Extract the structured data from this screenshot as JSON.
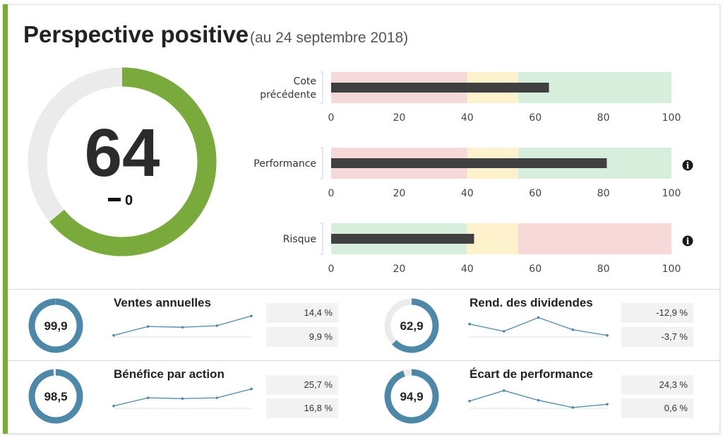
{
  "header": {
    "title": "Perspective positive",
    "subtitle": "(au 24 septembre 2018)"
  },
  "score": {
    "value": "64",
    "change": "0",
    "fraction": 0.64,
    "color": "#7aa93c",
    "track_color": "#ebebeb"
  },
  "colors": {
    "red_zone": "#f6d8d8",
    "yellow_zone": "#fdf2cc",
    "green_zone": "#d6eedb",
    "bar": "#404040",
    "gauge": "#4e88a8",
    "gauge_track": "#ebebeb",
    "spark": "#4e88a8"
  },
  "chart_data": [
    {
      "type": "bar",
      "orientation": "horizontal",
      "title": "",
      "xlim": [
        0,
        100
      ],
      "xticks": [
        "0",
        "20",
        "40",
        "60",
        "80",
        "100"
      ],
      "zones": [
        [
          0,
          40,
          "red"
        ],
        [
          40,
          55,
          "yellow"
        ],
        [
          55,
          100,
          "green"
        ]
      ],
      "categories": [
        "Cote précédente"
      ],
      "values": [
        64
      ]
    },
    {
      "type": "bar",
      "orientation": "horizontal",
      "title": "",
      "xlim": [
        0,
        100
      ],
      "xticks": [
        "0",
        "20",
        "40",
        "60",
        "80",
        "100"
      ],
      "zones": [
        [
          0,
          40,
          "red"
        ],
        [
          40,
          55,
          "yellow"
        ],
        [
          55,
          100,
          "green"
        ]
      ],
      "categories": [
        "Performance"
      ],
      "values": [
        81
      ],
      "info_icon": true
    },
    {
      "type": "bar",
      "orientation": "horizontal",
      "title": "",
      "xlim": [
        0,
        100
      ],
      "xticks": [
        "0",
        "20",
        "40",
        "60",
        "80",
        "100"
      ],
      "zones": [
        [
          0,
          40,
          "green"
        ],
        [
          40,
          55,
          "yellow"
        ],
        [
          55,
          100,
          "red"
        ]
      ],
      "categories": [
        "Risque"
      ],
      "values": [
        42
      ],
      "info_icon": true
    }
  ],
  "bullet_labels": [
    [
      "Cote",
      "précédente"
    ],
    [
      "Performance"
    ],
    [
      "Risque"
    ]
  ],
  "metrics": [
    {
      "title": "Ventes annuelles",
      "score": "99,9",
      "score_fraction": 0.999,
      "value1": "14,4 %",
      "value2": "9,9 %",
      "sparkline": [
        2,
        13,
        12,
        14,
        26
      ]
    },
    {
      "title": "Rend. des dividendes",
      "score": "62,9",
      "score_fraction": 0.629,
      "value1": "-12,9 %",
      "value2": "-3,7 %",
      "sparkline": [
        16,
        7,
        24,
        9,
        2
      ]
    },
    {
      "title": "Bénéfice par action",
      "score": "98,5",
      "score_fraction": 0.985,
      "value1": "25,7 %",
      "value2": "16,8 %",
      "sparkline": [
        3,
        13,
        12,
        13,
        24
      ]
    },
    {
      "title": "Écart de performance",
      "score": "94,9",
      "score_fraction": 0.949,
      "value1": "24,3 %",
      "value2": "0,6 %",
      "sparkline": [
        9,
        22,
        10,
        1,
        5
      ]
    }
  ]
}
